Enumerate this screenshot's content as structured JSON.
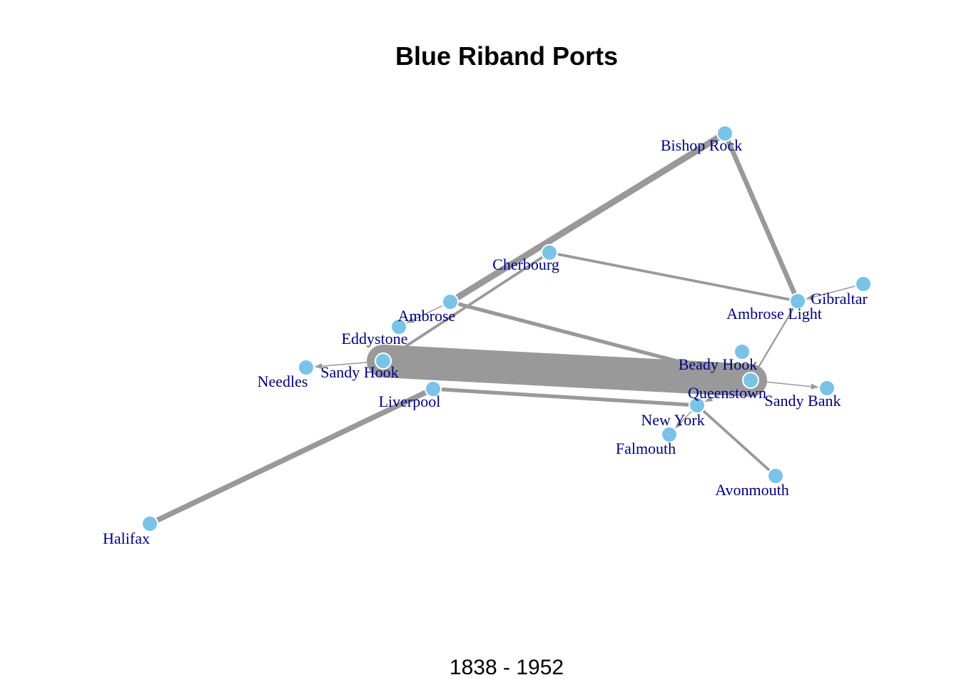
{
  "title": "Blue Riband Ports",
  "subtitle": "1838 - 1952",
  "colors": {
    "node_fill": "#7ac3e6",
    "node_stroke": "#ffffff",
    "edge": "#999999",
    "label": "#000080"
  },
  "nodes": [
    {
      "id": "bishop_rock",
      "label": "Bishop Rock"
    },
    {
      "id": "cherbourg",
      "label": "Cherbourg"
    },
    {
      "id": "ambrose",
      "label": "Ambrose"
    },
    {
      "id": "eddystone",
      "label": "Eddystone"
    },
    {
      "id": "sandy_hook",
      "label": "Sandy Hook"
    },
    {
      "id": "needles",
      "label": "Needles"
    },
    {
      "id": "liverpool",
      "label": "Liverpool"
    },
    {
      "id": "halifax",
      "label": "Halifax"
    },
    {
      "id": "gibraltar",
      "label": "Gibraltar"
    },
    {
      "id": "ambrose_light",
      "label": "Ambrose Light"
    },
    {
      "id": "beady_hook",
      "label": "Beady Hook"
    },
    {
      "id": "queenstown",
      "label": "Queenstown"
    },
    {
      "id": "sandy_bank",
      "label": "Sandy Bank"
    },
    {
      "id": "new_york",
      "label": "New York"
    },
    {
      "id": "falmouth",
      "label": "Falmouth"
    },
    {
      "id": "avonmouth",
      "label": "Avonmouth"
    }
  ],
  "edges": [
    {
      "source": "sandy_hook",
      "target": "queenstown",
      "weight": 40
    },
    {
      "source": "ambrose",
      "target": "bishop_rock",
      "weight": 12
    },
    {
      "source": "sandy_hook",
      "target": "cherbourg",
      "weight": 5
    },
    {
      "source": "cherbourg",
      "target": "ambrose_light",
      "weight": 5
    },
    {
      "source": "bishop_rock",
      "target": "ambrose_light",
      "weight": 9
    },
    {
      "source": "ambrose",
      "target": "queenstown",
      "weight": 7
    },
    {
      "source": "liverpool",
      "target": "new_york",
      "weight": 7
    },
    {
      "source": "halifax",
      "target": "liverpool",
      "weight": 10
    },
    {
      "source": "new_york",
      "target": "avonmouth",
      "weight": 5
    },
    {
      "source": "ambrose_light",
      "target": "queenstown",
      "weight": 3
    },
    {
      "source": "gibraltar",
      "target": "ambrose_light",
      "weight": 2
    },
    {
      "source": "ambrose",
      "target": "eddystone",
      "weight": 2
    },
    {
      "source": "sandy_hook",
      "target": "needles",
      "weight": 2
    },
    {
      "source": "queenstown",
      "target": "sandy_bank",
      "weight": 2
    },
    {
      "source": "queenstown",
      "target": "new_york",
      "weight": 2
    },
    {
      "source": "new_york",
      "target": "falmouth",
      "weight": 2
    }
  ]
}
